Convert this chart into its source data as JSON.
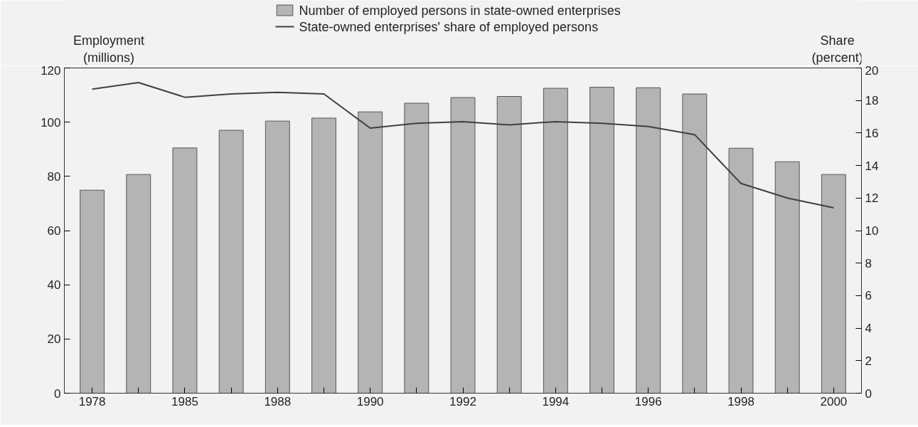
{
  "chart_data": {
    "type": "bar",
    "categories": [
      "1978",
      null,
      "1985",
      null,
      "1988",
      null,
      "1990",
      null,
      "1992",
      null,
      "1994",
      null,
      "1996",
      null,
      "1998",
      null,
      "2000"
    ],
    "ylabel": "Employment\n(millions)",
    "y2label": "Share\n(percent)",
    "series": [
      {
        "name": "Number of employed persons in state-owned enterprises",
        "type": "bar",
        "color": "#b4b4b4",
        "values": [
          74.9,
          80.7,
          90.5,
          97,
          100.4,
          101.5,
          103.8,
          107,
          109.1,
          109.5,
          112.5,
          112.9,
          112.7,
          110.4,
          90.4,
          85.4,
          80.7
        ]
      },
      {
        "name": "State-owned enterprises' share of employed persons",
        "type": "line",
        "axis": "y2",
        "color": "#404040",
        "values": [
          18.7,
          19.1,
          18.2,
          18.4,
          18.5,
          18.4,
          16.3,
          16.6,
          16.7,
          16.5,
          16.7,
          16.6,
          16.4,
          15.9,
          12.9,
          12.0,
          11.4
        ]
      }
    ],
    "ylim": [
      0,
      120
    ],
    "yticks": [
      0,
      20,
      40,
      60,
      80,
      100,
      120
    ],
    "y2lim": [
      0,
      20
    ],
    "y2ticks": [
      0,
      2,
      4,
      6,
      8,
      10,
      12,
      14,
      16,
      18,
      20
    ],
    "legend": "top",
    "grid": false,
    "marker": "none",
    "line_style": "solid"
  }
}
